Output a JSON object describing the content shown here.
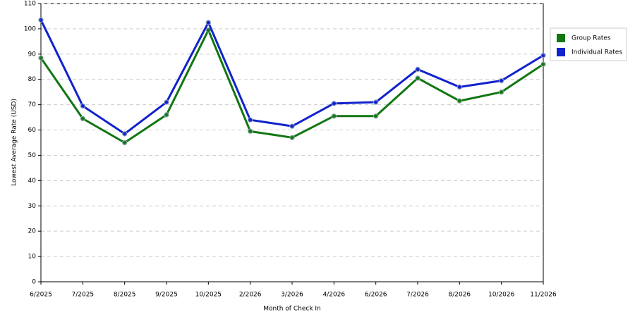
{
  "chart_data": {
    "type": "line",
    "y_label": "Lowest Average Rate (USD)",
    "x_label": "Month of Check In",
    "categories": [
      "6/2025",
      "7/2025",
      "8/2025",
      "9/2025",
      "10/2025",
      "2/2026",
      "3/2026",
      "4/2026",
      "6/2026",
      "7/2026",
      "8/2026",
      "10/2026",
      "11/2026"
    ],
    "series": [
      {
        "name": "Group Rates",
        "color": "#117711",
        "values": [
          88.5,
          64.5,
          55,
          66,
          99.5,
          59.5,
          57,
          65.5,
          65.5,
          80.5,
          71.5,
          75,
          86
        ]
      },
      {
        "name": "Individual Rates",
        "color": "#1122cc",
        "values": [
          103.5,
          69.5,
          58.5,
          71,
          102.5,
          64,
          61.5,
          70.5,
          71,
          84,
          77,
          79.5,
          89.5
        ]
      }
    ],
    "ylim": [
      0,
      110
    ],
    "yticks": [
      0,
      10,
      20,
      30,
      40,
      50,
      60,
      70,
      80,
      90,
      100,
      110
    ],
    "grid": true,
    "legend": "right"
  }
}
